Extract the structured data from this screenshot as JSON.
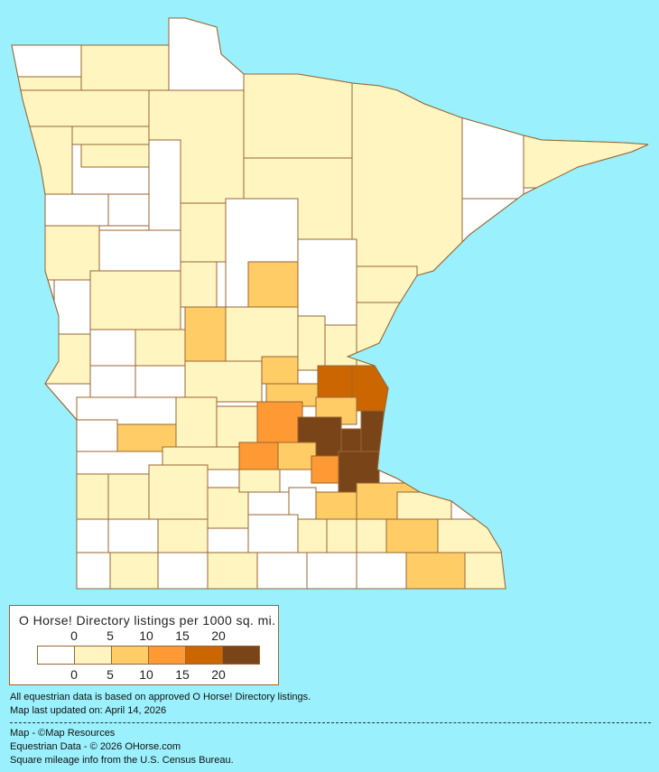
{
  "legend": {
    "title": "O Horse! Directory listings per 1000 sq. mi.",
    "top_ticks": [
      "0",
      "5",
      "10",
      "15",
      "20"
    ],
    "bottom_ticks": [
      "0",
      "5",
      "10",
      "15",
      "20"
    ],
    "bins": [
      {
        "range": "0",
        "color": "#ffffff"
      },
      {
        "range": "0-5",
        "color": "#fff5c0"
      },
      {
        "range": "5-10",
        "color": "#ffcc66"
      },
      {
        "range": "10-15",
        "color": "#ff9933"
      },
      {
        "range": "15-20",
        "color": "#cc6600"
      },
      {
        "range": "20+",
        "color": "#7a4419"
      }
    ]
  },
  "notes": {
    "data_basis": "All equestrian data is based on approved O Horse! Directory listings.",
    "updated": "Map last updated on: April 14, 2026",
    "map_credit": "Map - ©Map Resources",
    "data_credit": "Equestrian Data - © 2026 OHorse.com",
    "census_credit": "Square mileage info from the U.S. Census Bureau."
  },
  "colors": {
    "water": "#9af0fc",
    "border": "#996633"
  }
}
